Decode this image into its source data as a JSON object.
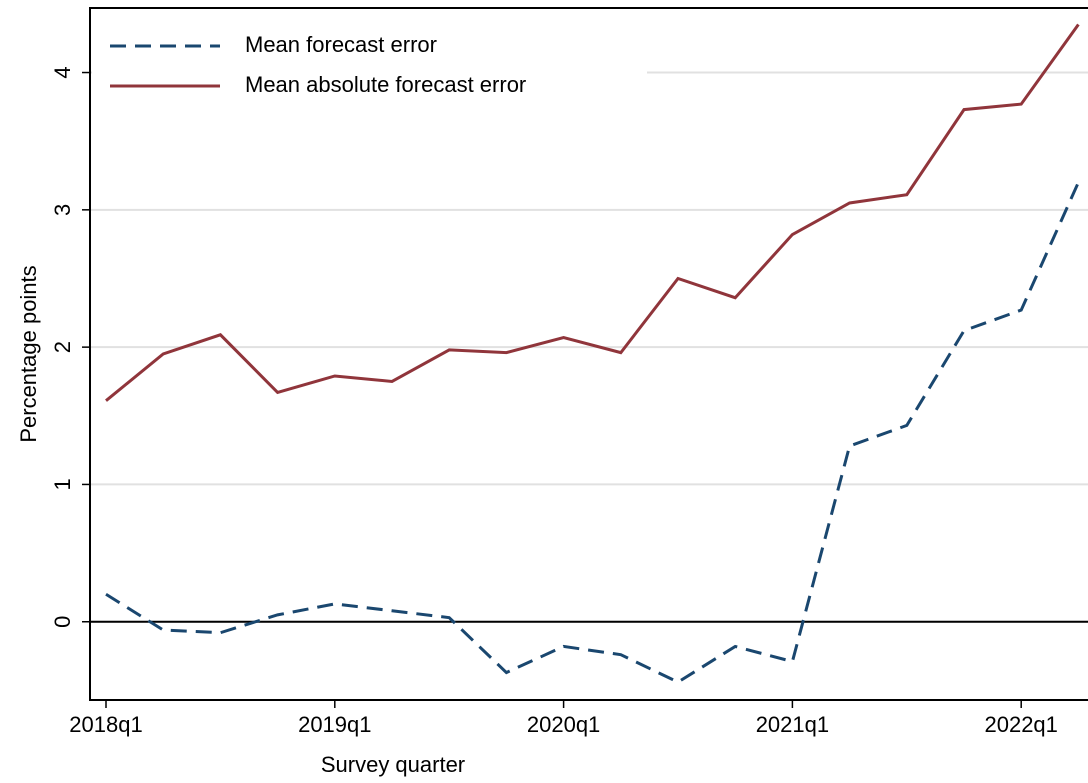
{
  "chart_data": {
    "type": "line",
    "x_label": "Survey quarter",
    "y_label": "Percentage points",
    "categories": [
      "2018q1",
      null,
      null,
      null,
      "2019q1",
      null,
      null,
      null,
      "2020q1",
      null,
      null,
      null,
      "2021q1",
      null,
      null,
      null,
      "2022q1",
      null
    ],
    "series": [
      {
        "name": "Mean forecast error",
        "color": "#1a476f",
        "dash": "dashed",
        "values": [
          0.2,
          -0.06,
          -0.08,
          0.05,
          0.13,
          0.08,
          0.03,
          -0.37,
          -0.18,
          -0.24,
          -0.44,
          -0.18,
          -0.29,
          1.28,
          1.43,
          2.12,
          2.27,
          3.2
        ]
      },
      {
        "name": "Mean absolute forecast error",
        "color": "#90353b",
        "dash": "solid",
        "values": [
          1.61,
          1.95,
          2.09,
          1.67,
          1.79,
          1.75,
          1.98,
          1.96,
          2.07,
          1.96,
          2.5,
          2.36,
          2.82,
          3.05,
          3.11,
          3.73,
          3.77,
          4.35
        ]
      }
    ],
    "ylim": [
      -0.57,
      4.47
    ],
    "yticks": [
      0,
      1,
      2,
      3,
      4
    ],
    "grid": true,
    "reference_line": 0,
    "legend": "top-left"
  }
}
